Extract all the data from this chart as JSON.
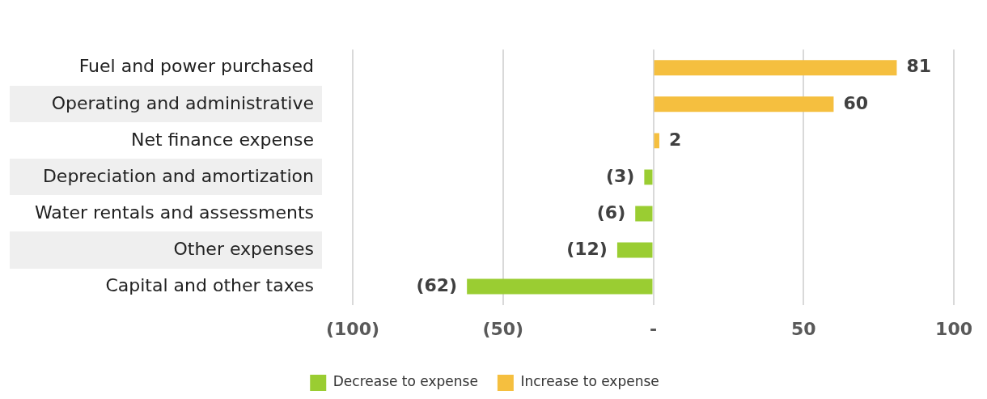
{
  "chart_data": {
    "type": "bar",
    "orientation": "horizontal",
    "stacked": true,
    "categories": [
      "Fuel and power purchased",
      "Operating and administrative",
      "Net finance expense",
      "Depreciation and amortization",
      "Water rentals and assessments",
      "Other expenses",
      "Capital and other taxes"
    ],
    "series": [
      {
        "name": "Decrease to expense",
        "color": "#9acd32",
        "values": [
          null,
          null,
          null,
          -3,
          -6,
          -12,
          -62
        ],
        "value_labels": [
          null,
          null,
          null,
          "(3)",
          "(6)",
          "(12)",
          "(62)"
        ]
      },
      {
        "name": "Increase to expense",
        "color": "#f5bf3f",
        "values": [
          81,
          60,
          2,
          null,
          null,
          null,
          null
        ],
        "value_labels": [
          "81",
          "60",
          "2",
          null,
          null,
          null,
          null
        ]
      }
    ],
    "xlim": [
      -100,
      100
    ],
    "xticks": [
      {
        "value": -100,
        "label": "(100)"
      },
      {
        "value": -50,
        "label": "(50)"
      },
      {
        "value": 0,
        "label": "-"
      },
      50,
      100
    ],
    "grid": "x",
    "legend": "bottom"
  }
}
